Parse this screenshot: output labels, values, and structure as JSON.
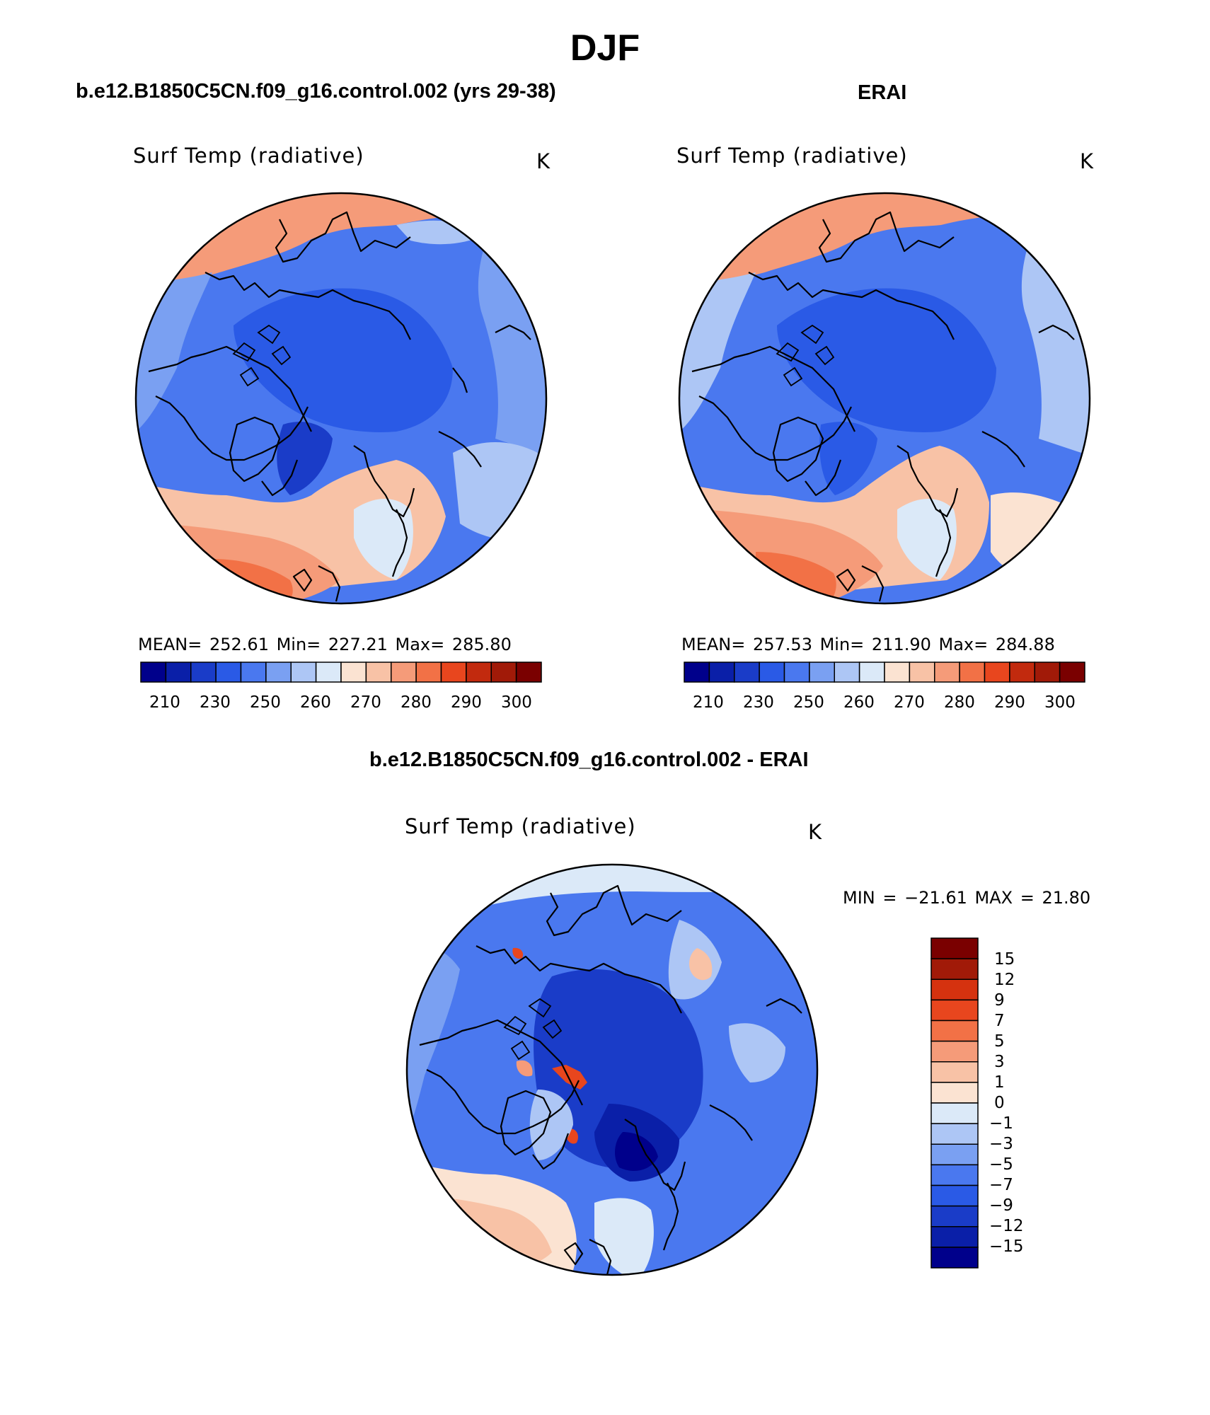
{
  "figure": {
    "title": "DJF"
  },
  "panels": [
    {
      "title": "b.e12.B1850C5CN.f09_g16.control.002 (yrs 29-38)",
      "variable": "Surf Temp (radiative)",
      "units": "K",
      "stats": "MEAN=  252.61    Min=  227.21    Max=  285.80"
    },
    {
      "title": "ERAI",
      "variable": "Surf Temp (radiative)",
      "units": "K",
      "stats": "MEAN=  257.53    Min=  211.90    Max=  284.88"
    },
    {
      "title": "b.e12.B1850C5CN.f09_g16.control.002 - ERAI",
      "variable": "Surf Temp (radiative)",
      "units": "K",
      "stats": "MIN  =  −21.61  MAX  =    21.80"
    }
  ],
  "chart_data": [
    {
      "type": "heatmap",
      "title": "b.e12.B1850C5CN.f09_g16.control.002 (yrs 29-38)",
      "variable": "Surf Temp (radiative)",
      "units": "K",
      "projection": "north polar stereographic",
      "mean": 252.61,
      "min": 227.21,
      "max": 285.8,
      "colorbar_ticks": [
        "210",
        "230",
        "250",
        "260",
        "270",
        "280",
        "290",
        "300"
      ],
      "colors": [
        "#00008b",
        "#0a1fa8",
        "#1a3cc8",
        "#2a5ae6",
        "#4a78ef",
        "#7aa0f2",
        "#adc6f5",
        "#dbe9f8",
        "#fbe3d2",
        "#f8c2a6",
        "#f59b79",
        "#f27146",
        "#e8461e",
        "#c22a0e",
        "#a11a08",
        "#7a0000"
      ]
    },
    {
      "type": "heatmap",
      "title": "ERAI",
      "variable": "Surf Temp (radiative)",
      "units": "K",
      "projection": "north polar stereographic",
      "mean": 257.53,
      "min": 211.9,
      "max": 284.88,
      "colorbar_ticks": [
        "210",
        "230",
        "250",
        "260",
        "270",
        "280",
        "290",
        "300"
      ],
      "colors": [
        "#00008b",
        "#0a1fa8",
        "#1a3cc8",
        "#2a5ae6",
        "#4a78ef",
        "#7aa0f2",
        "#adc6f5",
        "#dbe9f8",
        "#fbe3d2",
        "#f8c2a6",
        "#f59b79",
        "#f27146",
        "#e8461e",
        "#c22a0e",
        "#a11a08",
        "#7a0000"
      ]
    },
    {
      "type": "heatmap",
      "title": "b.e12.B1850C5CN.f09_g16.control.002 - ERAI",
      "variable": "Surf Temp (radiative)",
      "units": "K",
      "projection": "north polar stereographic",
      "min": -21.61,
      "max": 21.8,
      "colorbar_ticks": [
        "15",
        "12",
        "9",
        "7",
        "5",
        "3",
        "1",
        "0",
        "−1",
        "−3",
        "−5",
        "−7",
        "−9",
        "−12",
        "−15"
      ],
      "colors": [
        "#7a0000",
        "#a11a08",
        "#d5320f",
        "#e8461e",
        "#f27146",
        "#f59b79",
        "#f8c2a6",
        "#fbe3d2",
        "#dbe9f8",
        "#adc6f5",
        "#7aa0f2",
        "#4a78ef",
        "#2a5ae6",
        "#1a3cc8",
        "#0a1fa8",
        "#00008b"
      ]
    }
  ]
}
